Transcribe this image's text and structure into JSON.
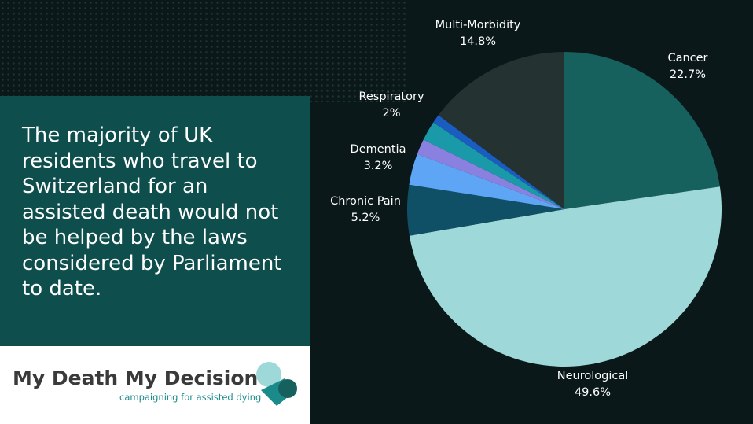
{
  "page": {
    "headline": "The majority of UK residents who travel to Switzerland for an assisted death would not be helped by the laws considered by Parliament to date.",
    "logo": {
      "name": "My Death My Decision",
      "tagline": "campaigning for assisted dying"
    }
  },
  "chart_data": {
    "type": "pie",
    "categories": [
      "Multi-Morbidity",
      "Cancer",
      "Neurological",
      "Chronic Pain",
      "Dementia",
      null,
      "Respiratory",
      null
    ],
    "values": [
      14.8,
      22.7,
      49.6,
      5.2,
      3.2,
      1.6,
      2,
      0.9
    ],
    "value_labels": [
      "14.8%",
      "22.7%",
      "49.6%",
      "5.2%",
      "3.2%",
      null,
      "2%",
      null
    ],
    "colors": [
      "#253232",
      "#16605e",
      "#9fd8d9",
      "#0f5066",
      "#5ea6f5",
      "#8a80e0",
      "#1a9aa8",
      "#1a5cc0"
    ]
  }
}
